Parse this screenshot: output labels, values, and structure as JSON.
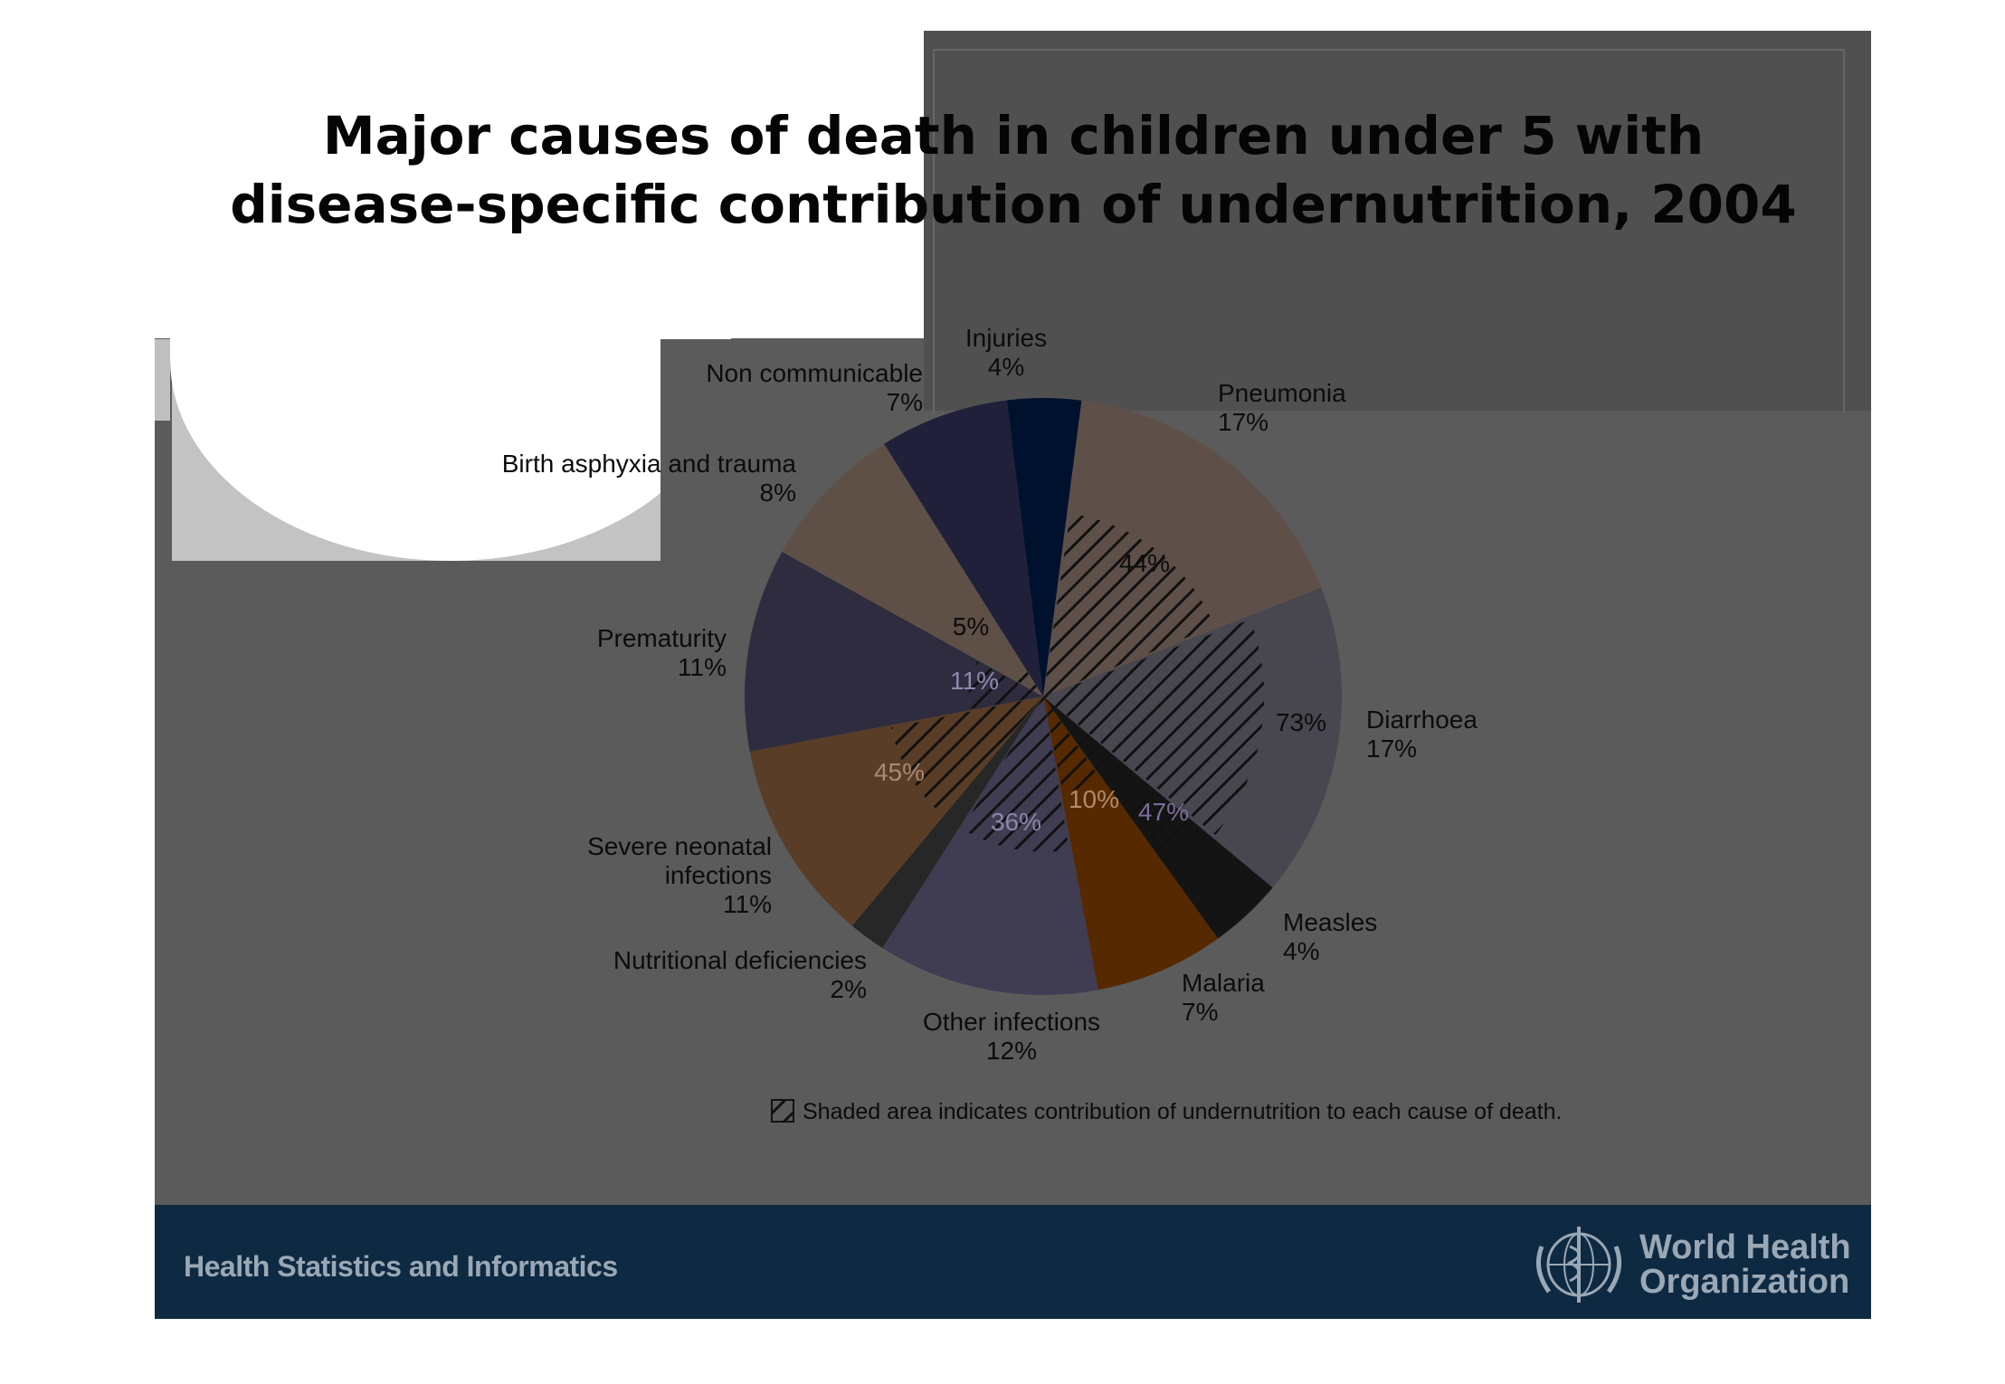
{
  "title_line1": "Major causes of death in children under 5 with",
  "title_line2": "disease-specific contribution of undernutrition, 2004",
  "footer": {
    "left_text": "Health Statistics and Informatics",
    "org_line1": "World Health",
    "org_line2": "Organization",
    "emblem_icon": "who-emblem-icon"
  },
  "colors": {
    "slide_bg": "#5b5b5b",
    "footer_bg": "#0e2a42",
    "hatch": "#111111"
  },
  "chart_data": {
    "type": "pie",
    "title": "Major causes of death in children under 5 with disease-specific contribution of undernutrition, 2004",
    "slices": [
      {
        "name": "Injuries",
        "label": "4%",
        "value": 4,
        "color": "#00112e",
        "undernutrition": null
      },
      {
        "name": "Pneumonia",
        "label": "17%",
        "value": 17,
        "color": "#5e5049",
        "undernutrition": "44%"
      },
      {
        "name": "Diarrhoea",
        "label": "17%",
        "value": 17,
        "color": "#48464f",
        "undernutrition": "73%"
      },
      {
        "name": "Measles",
        "label": "4%",
        "value": 4,
        "color": "#141414",
        "undernutrition": "47%"
      },
      {
        "name": "Malaria",
        "label": "7%",
        "value": 7,
        "color": "#572900",
        "undernutrition": "10%"
      },
      {
        "name": "Other infections",
        "label": "12%",
        "value": 12,
        "color": "#403c52",
        "undernutrition": "36%"
      },
      {
        "name": "Nutritional deficiencies",
        "label": "2%",
        "value": 2,
        "color": "#272727",
        "undernutrition": null
      },
      {
        "name": "Severe neonatal infections",
        "label": "11%",
        "value": 11,
        "color": "#5a3d27",
        "undernutrition": "45%"
      },
      {
        "name": "Prematurity",
        "label": "11%",
        "value": 11,
        "color": "#2f2c3f",
        "undernutrition": "11%"
      },
      {
        "name": "Birth asphyxia and trauma",
        "label": "8%",
        "value": 8,
        "color": "#5f5047",
        "undernutrition": "5%"
      },
      {
        "name": "Non communicable",
        "label": "7%",
        "value": 7,
        "color": "#20203a",
        "undernutrition": null
      }
    ],
    "legend": "Shaded area indicates contribution of undernutrition to each cause of death."
  }
}
